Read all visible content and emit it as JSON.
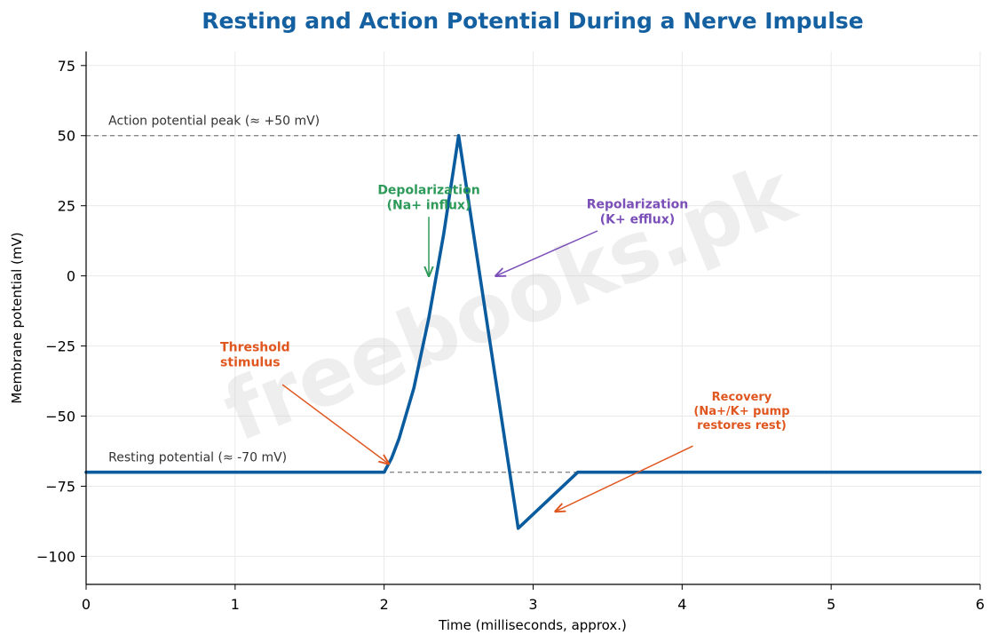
{
  "chart_data": {
    "type": "line",
    "title": "Resting and Action Potential During a Nerve Impulse",
    "xlabel": "Time (milliseconds, approx.)",
    "ylabel": "Membrane potential (mV)",
    "xlim": [
      0,
      6
    ],
    "ylim": [
      -110,
      80
    ],
    "x_ticks": [
      0,
      1,
      2,
      3,
      4,
      5,
      6
    ],
    "y_ticks": [
      -100,
      -75,
      -50,
      -25,
      0,
      25,
      50,
      75
    ],
    "y_tick_labels": [
      "−100",
      "−75",
      "−50",
      "−25",
      "0",
      "25",
      "50",
      "75"
    ],
    "grid": true,
    "series": [
      {
        "color": "#0a5c9e",
        "points": [
          [
            0,
            -70
          ],
          [
            2.0,
            -70
          ],
          [
            2.05,
            -65
          ],
          [
            2.1,
            -58
          ],
          [
            2.2,
            -40
          ],
          [
            2.3,
            -15
          ],
          [
            2.4,
            15
          ],
          [
            2.5,
            50
          ],
          [
            2.9,
            -90
          ],
          [
            3.3,
            -70
          ],
          [
            6,
            -70
          ]
        ]
      }
    ],
    "reference_lines": [
      {
        "y": 50,
        "label": "Action potential peak (≈ +50 mV)",
        "color": "#888888"
      },
      {
        "y": -70,
        "label": "Resting potential (≈ -70 mV)",
        "color": "#888888"
      }
    ],
    "annotations": [
      {
        "lines": [
          "Depolarization",
          "(Na+ influx)"
        ],
        "color": "#2e9a5a",
        "text_xy": [
          2.3,
          28
        ],
        "arrow_to": [
          2.3,
          0
        ]
      },
      {
        "lines": [
          "Repolarization",
          "(K+ efflux)"
        ],
        "color": "#7b4fb8",
        "text_xy": [
          3.7,
          23
        ],
        "arrow_to": [
          2.75,
          0
        ]
      },
      {
        "lines": [
          "Threshold",
          "stimulus"
        ],
        "color": "#e0561f",
        "text_xy": [
          0.9,
          -28
        ],
        "arrow_to": [
          2.03,
          -67
        ]
      },
      {
        "lines": [
          "Recovery",
          "(Na+/K+ pump",
          "restores rest)"
        ],
        "color": "#e0561f",
        "text_xy": [
          4.4,
          -48
        ],
        "arrow_to": [
          3.15,
          -84
        ]
      }
    ],
    "watermark": "freebooks.pk"
  }
}
